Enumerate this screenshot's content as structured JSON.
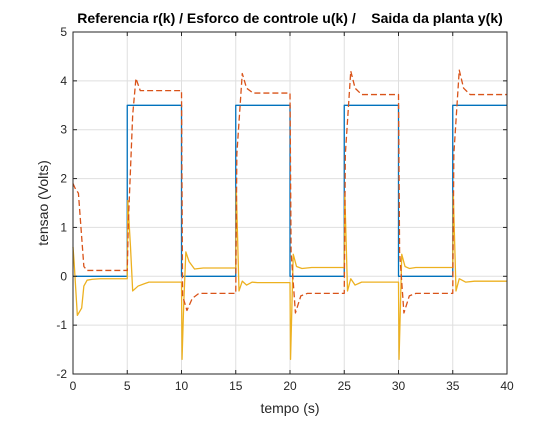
{
  "chart_data": {
    "type": "line",
    "title": "Referencia r(k) / Esforco de controle u(k) /    Saida da planta y(k)",
    "xlabel": "tempo (s)",
    "ylabel": "tensao (Volts)",
    "xlim": [
      0,
      40
    ],
    "ylim": [
      -2,
      5
    ],
    "xticks": [
      0,
      5,
      10,
      15,
      20,
      25,
      30,
      35,
      40
    ],
    "yticks": [
      -2,
      -1,
      0,
      1,
      2,
      3,
      4,
      5
    ],
    "grid": true,
    "legend": "none",
    "series": [
      {
        "color": "#0072BD",
        "style": "solid",
        "x": [
          0,
          5,
          5,
          10,
          10,
          15,
          15,
          20,
          20,
          25,
          25,
          30,
          30,
          35,
          35,
          40
        ],
        "y": [
          0,
          0,
          3.5,
          3.5,
          0,
          0,
          3.5,
          3.5,
          0,
          0,
          3.5,
          3.5,
          0,
          0,
          3.5,
          3.5
        ]
      },
      {
        "color": "#D95319",
        "style": "dashed",
        "x": [
          0,
          0.2,
          0.5,
          0.9,
          1.0,
          1.3,
          5.0,
          5.1,
          5.5,
          5.8,
          6.2,
          6.5,
          10.0,
          10.1,
          10.5,
          11.0,
          11.6,
          12.0,
          15.0,
          15.1,
          15.6,
          16.0,
          16.6,
          17.0,
          20.0,
          20.1,
          20.5,
          21.0,
          21.6,
          22.0,
          25.0,
          25.1,
          25.6,
          26.0,
          26.6,
          27.0,
          30.0,
          30.1,
          30.5,
          31.0,
          31.6,
          32.0,
          35.0,
          35.1,
          35.6,
          36.0,
          36.6,
          37.0,
          40.0
        ],
        "y": [
          1.9,
          1.8,
          1.7,
          0.5,
          0.2,
          0.12,
          0.12,
          1.1,
          3.3,
          4.05,
          3.8,
          3.8,
          3.8,
          -0.4,
          -0.7,
          -0.45,
          -0.35,
          -0.35,
          -0.35,
          2.5,
          4.15,
          3.85,
          3.75,
          3.75,
          3.75,
          0.5,
          -0.75,
          -0.4,
          -0.35,
          -0.35,
          -0.35,
          2.5,
          4.2,
          3.85,
          3.72,
          3.72,
          3.72,
          0.5,
          -0.75,
          -0.4,
          -0.35,
          -0.35,
          -0.35,
          2.5,
          4.22,
          3.85,
          3.72,
          3.72,
          3.72
        ]
      },
      {
        "color": "#EDB120",
        "style": "solid",
        "x": [
          0,
          0.1,
          0.4,
          0.8,
          1.0,
          1.3,
          1.8,
          2.5,
          5.0,
          5.05,
          5.3,
          5.5,
          6.0,
          6.6,
          7.0,
          10.0,
          10.05,
          10.2,
          10.4,
          10.7,
          11.2,
          12.0,
          15.0,
          15.05,
          15.3,
          15.6,
          16.0,
          16.5,
          17.0,
          20.0,
          20.05,
          20.3,
          20.6,
          21.1,
          22.0,
          25.0,
          25.05,
          25.3,
          25.6,
          26.0,
          26.6,
          27.0,
          30.0,
          30.05,
          30.3,
          30.6,
          31.0,
          31.6,
          32.0,
          35.0,
          35.05,
          35.3,
          35.6,
          36.2,
          37.0,
          40.0
        ],
        "y": [
          0.6,
          0.3,
          -0.8,
          -0.65,
          -0.2,
          -0.08,
          -0.06,
          -0.05,
          -0.05,
          1.55,
          0.6,
          -0.3,
          -0.2,
          -0.15,
          -0.12,
          -0.12,
          -1.7,
          -0.6,
          0.5,
          0.3,
          0.15,
          0.17,
          0.17,
          1.8,
          -0.3,
          -0.1,
          -0.18,
          -0.12,
          -0.13,
          -0.13,
          -1.7,
          0.45,
          0.2,
          0.16,
          0.18,
          0.18,
          1.7,
          -0.3,
          -0.05,
          -0.18,
          -0.12,
          -0.12,
          -0.12,
          -1.7,
          0.45,
          0.2,
          0.16,
          0.18,
          0.18,
          0.18,
          1.7,
          -0.3,
          -0.05,
          -0.12,
          -0.1,
          -0.1
        ]
      }
    ]
  }
}
